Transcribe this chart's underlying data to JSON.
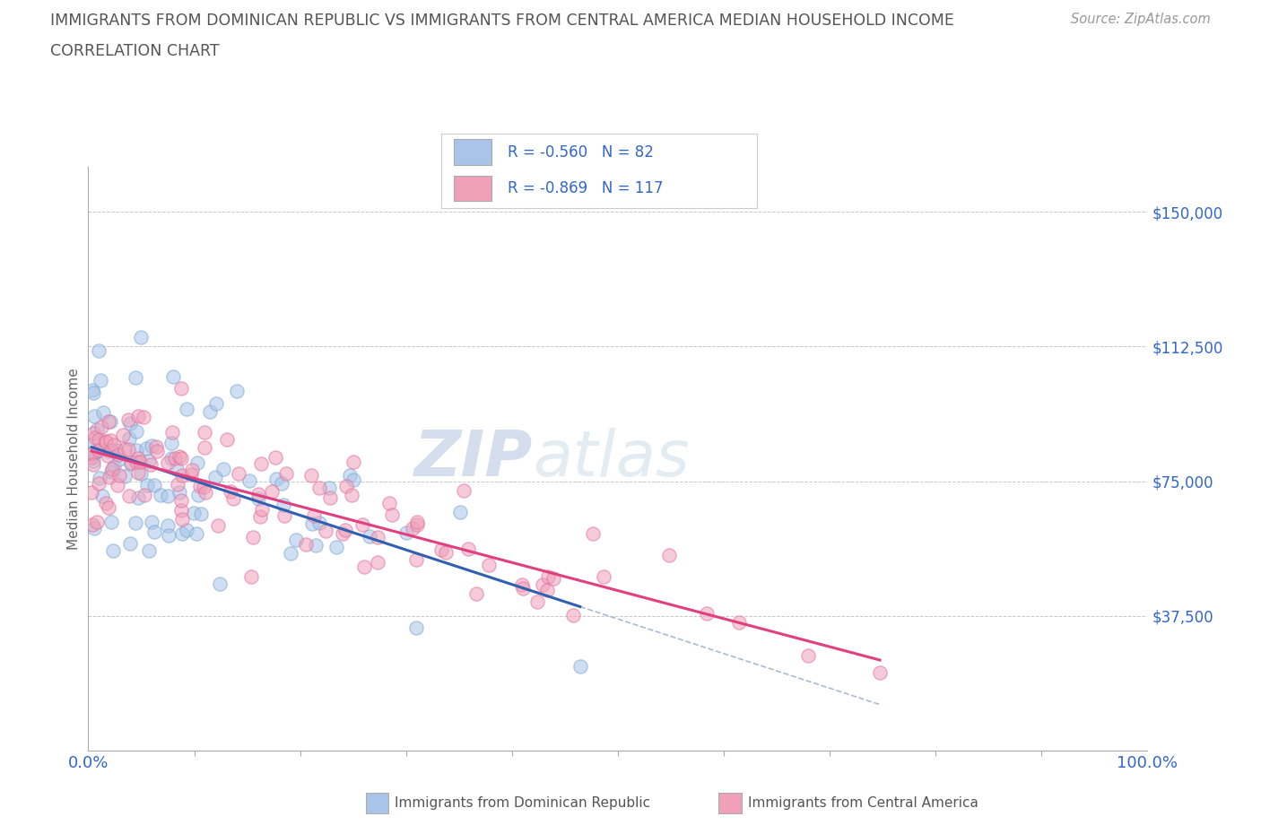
{
  "title_line1": "IMMIGRANTS FROM DOMINICAN REPUBLIC VS IMMIGRANTS FROM CENTRAL AMERICA MEDIAN HOUSEHOLD INCOME",
  "title_line2": "CORRELATION CHART",
  "source": "Source: ZipAtlas.com",
  "ylabel": "Median Household Income",
  "xlim": [
    0.0,
    1.0
  ],
  "ylim": [
    0,
    162500
  ],
  "background_color": "#ffffff",
  "grid_color": "#c8c8c8",
  "title_color": "#555555",
  "watermark_text": "ZIP",
  "watermark_text2": "atlas",
  "series": [
    {
      "name": "Immigrants from Dominican Republic",
      "R": -0.56,
      "N": 82,
      "dot_color": "#a8c4e8",
      "dot_edge_color": "#7aaad0",
      "line_color": "#3060b0",
      "R_str": "-0.560",
      "N_str": "82"
    },
    {
      "name": "Immigrants from Central America",
      "R": -0.869,
      "N": 117,
      "dot_color": "#f0a0b8",
      "dot_edge_color": "#e070a0",
      "line_color": "#e04080",
      "R_str": "-0.869",
      "N_str": "117"
    }
  ],
  "legend_R_color": "#3366cc",
  "legend_N_color": "#3366cc",
  "axis_label_color": "#3366cc",
  "tick_color": "#3366cc",
  "dot_size": 120,
  "dot_alpha": 0.55,
  "dot_linewidth": 1.0
}
